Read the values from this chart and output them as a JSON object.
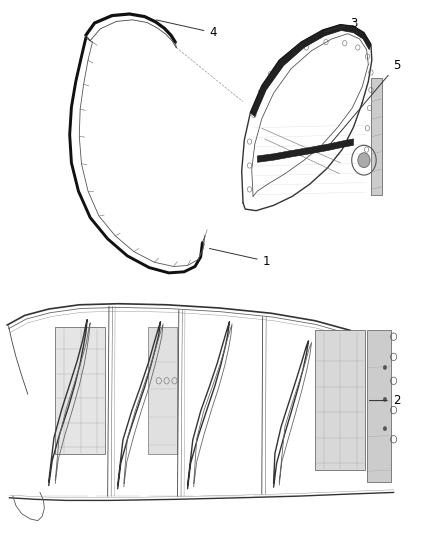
{
  "background_color": "#ffffff",
  "line_color": "#555555",
  "fig_width": 4.38,
  "fig_height": 5.33,
  "dpi": 100
}
